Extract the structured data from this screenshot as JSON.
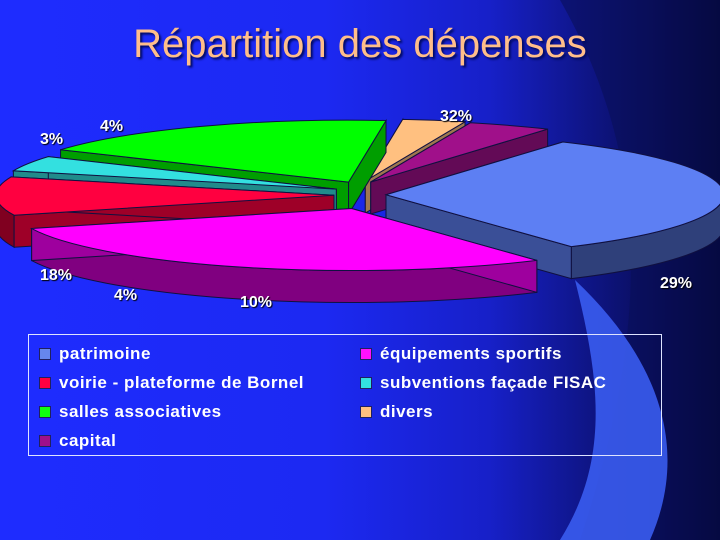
{
  "title": "Répartition des dépenses",
  "chart_data": {
    "type": "pie",
    "title": "Répartition des dépenses",
    "labels": [
      "patrimoine",
      "équipements sportifs",
      "voirie - plateforme de Bornel",
      "subventions façade FISAC",
      "salles associatives",
      "divers",
      "capital"
    ],
    "values": [
      32,
      29,
      10,
      4,
      18,
      3,
      4
    ],
    "value_labels": [
      "32%",
      "29%",
      "10%",
      "4%",
      "18%",
      "3%",
      "4%"
    ],
    "colors": [
      "#5d7ff3",
      "#ff00ff",
      "#ff0040",
      "#33e0e0",
      "#00ff00",
      "#ffc080",
      "#a0108a"
    ],
    "exploded": true,
    "3d": true,
    "legend": "bottom"
  },
  "legend_items": [
    {
      "label": "patrimoine",
      "color": "#6686ee"
    },
    {
      "label": "équipements sportifs",
      "color": "#ff10ff"
    },
    {
      "label": "voirie - plateforme de Bornel",
      "color": "#ff0040"
    },
    {
      "label": "subventions façade FISAC",
      "color": "#33e0e0"
    },
    {
      "label": "salles associatives",
      "color": "#10ff10"
    },
    {
      "label": "divers",
      "color": "#ffc080"
    },
    {
      "label": "capital",
      "color": "#a0108a"
    }
  ]
}
